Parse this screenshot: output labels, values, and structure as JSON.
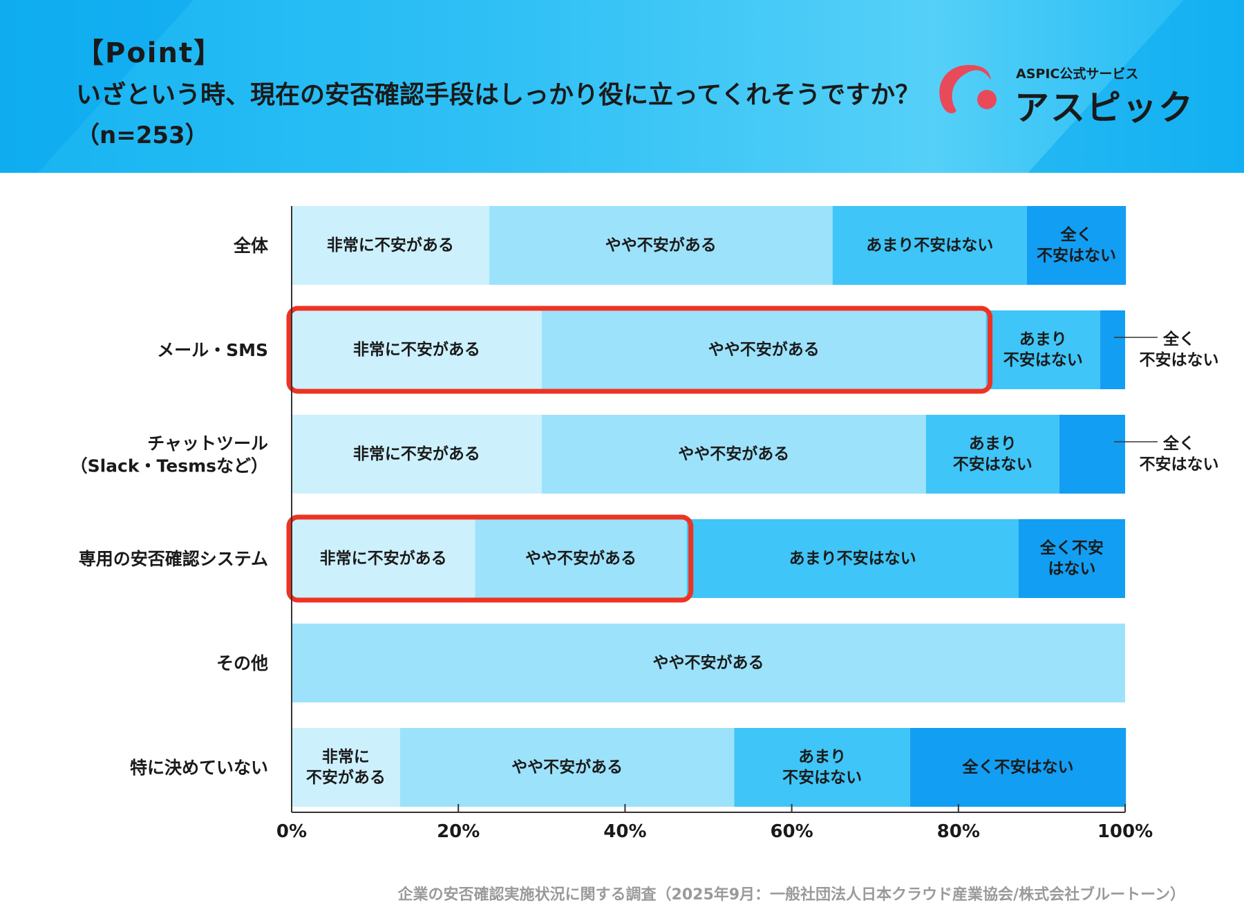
{
  "header": {
    "point": "【Point】",
    "question": "いざという時、現在の安否確認手段はしっかり役に立ってくれそうですか？",
    "n": "（n=253）"
  },
  "logo": {
    "sub": "ASPIC公式サービス",
    "name": "アスピック"
  },
  "chart_data": {
    "type": "bar",
    "orientation": "horizontal",
    "stacked": true,
    "percent_stacked": true,
    "title": "いざという時、現在の安否確認手段はしっかり役に立ってくれそうですか？",
    "categories": [
      "全体",
      "メール・SMS",
      "チャットツール\n（Slack・Tesmsなど）",
      "専用の安否確認システム",
      "その他",
      "特に決めていない"
    ],
    "series": [
      {
        "name": "非常に不安がある",
        "color": "#cdf0fd",
        "values": [
          23.7,
          30.0,
          30.0,
          22.0,
          0,
          13.0
        ]
      },
      {
        "name": "やや不安がある",
        "color": "#9de2fb",
        "values": [
          41.2,
          53.3,
          46.1,
          25.4,
          100,
          40.1
        ]
      },
      {
        "name": "あまり不安はない",
        "color": "#3fc5f7",
        "values": [
          23.3,
          13.7,
          16.0,
          39.8,
          0,
          21.1
        ]
      },
      {
        "name": "全く不安はない",
        "color": "#129ef2",
        "values": [
          11.9,
          3.0,
          7.9,
          12.8,
          0,
          25.9
        ]
      }
    ],
    "segment_labels": [
      [
        "非常に不安がある",
        "やや不安がある",
        "あまり不安はない",
        "全く\n不安はない"
      ],
      [
        "非常に不安がある",
        "やや不安がある",
        "あまり\n不安はない",
        ""
      ],
      [
        "非常に不安がある",
        "やや不安がある",
        "あまり\n不安はない",
        ""
      ],
      [
        "非常に不安がある",
        "やや不安がある",
        "あまり不安はない",
        "全く不安\nはない"
      ],
      [
        "",
        "やや不安がある",
        "",
        ""
      ],
      [
        "非常に\n不安がある",
        "やや不安がある",
        "あまり\n不安はない",
        "全く不安はない"
      ]
    ],
    "callouts": [
      {
        "row": 1,
        "text": "全く\n不安はない"
      },
      {
        "row": 2,
        "text": "全く\n不安はない"
      }
    ],
    "highlights": [
      {
        "row": 1,
        "series": [
          "非常に不安がある",
          "やや不安がある"
        ]
      },
      {
        "row": 3,
        "series": [
          "非常に不安がある",
          "やや不安がある"
        ]
      }
    ],
    "highlight_color": "#ee3322",
    "x_ticks": [
      "0%",
      "20%",
      "40%",
      "60%",
      "80%",
      "100%"
    ],
    "xlim": [
      0,
      100
    ],
    "xlabel": "",
    "ylabel": ""
  },
  "footer": {
    "source": "企業の安否確認実施状況に関する調査（2025年9月：一般社団法人日本クラウド産業協会/株式会社ブルートーン）"
  }
}
